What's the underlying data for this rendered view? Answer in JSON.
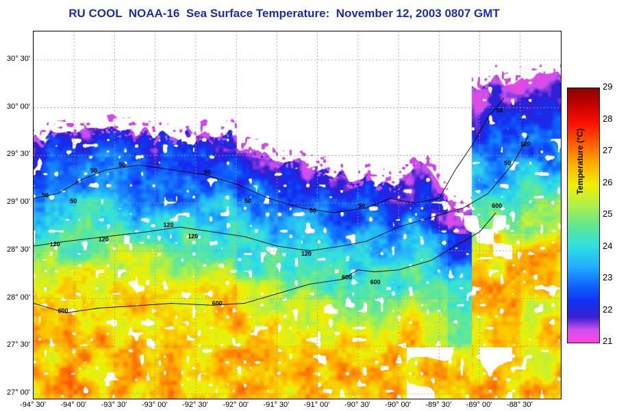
{
  "title": "RU COOL  NOAA-16  Sea Surface Temperature:  November 12, 2003 0807 GMT",
  "colors": {
    "title": "#1a2db0",
    "land": "#ffffff",
    "grid": "#999999",
    "contour": "#000000"
  },
  "map": {
    "lon_range": [
      -94.5,
      -88.0
    ],
    "lat_range": [
      26.95,
      30.8
    ],
    "lat_labels": [
      {
        "value": 30.5,
        "text": "30° 30'"
      },
      {
        "value": 30.0,
        "text": "30° 00'"
      },
      {
        "value": 29.5,
        "text": "29° 30'"
      },
      {
        "value": 29.0,
        "text": "29° 00'"
      },
      {
        "value": 28.5,
        "text": "28° 30'"
      },
      {
        "value": 28.0,
        "text": "28° 00'"
      },
      {
        "value": 27.5,
        "text": "27° 30'"
      },
      {
        "value": 27.0,
        "text": "27° 00'"
      }
    ],
    "lon_labels": [
      {
        "value": -94.5,
        "text": "-94° 30'"
      },
      {
        "value": -94.0,
        "text": "-94° 00'"
      },
      {
        "value": -93.5,
        "text": "-93° 30'"
      },
      {
        "value": -93.0,
        "text": "-93° 00'"
      },
      {
        "value": -92.5,
        "text": "-92° 30'"
      },
      {
        "value": -92.0,
        "text": "-92° 00'"
      },
      {
        "value": -91.5,
        "text": "-91° 30'"
      },
      {
        "value": -91.0,
        "text": "-91° 00'"
      },
      {
        "value": -90.5,
        "text": "-90° 30'"
      },
      {
        "value": -90.0,
        "text": "-90° 00'"
      },
      {
        "value": -89.5,
        "text": "-89° 30'"
      },
      {
        "value": -89.0,
        "text": "-89° 00'"
      },
      {
        "value": -88.5,
        "text": "-88° 30'"
      }
    ],
    "contours": [
      {
        "depth": "50",
        "points": [
          [
            -94.5,
            29.05
          ],
          [
            -94.2,
            29.1
          ],
          [
            -93.9,
            29.25
          ],
          [
            -93.6,
            29.35
          ],
          [
            -93.2,
            29.4
          ],
          [
            -92.8,
            29.35
          ],
          [
            -92.4,
            29.3
          ],
          [
            -92.0,
            29.2
          ],
          [
            -91.6,
            29.05
          ],
          [
            -91.2,
            28.95
          ],
          [
            -90.8,
            28.9
          ],
          [
            -90.4,
            28.95
          ],
          [
            -90.1,
            29.05
          ],
          [
            -89.8,
            29.0
          ],
          [
            -89.5,
            29.05
          ],
          [
            -89.3,
            29.35
          ],
          [
            -89.1,
            29.6
          ],
          [
            -88.9,
            29.9
          ],
          [
            -88.7,
            30.1
          ]
        ]
      },
      {
        "depth": "120",
        "points": [
          [
            -94.5,
            28.55
          ],
          [
            -94.1,
            28.6
          ],
          [
            -93.6,
            28.65
          ],
          [
            -93.1,
            28.7
          ],
          [
            -92.7,
            28.75
          ],
          [
            -92.3,
            28.7
          ],
          [
            -91.9,
            28.65
          ],
          [
            -91.5,
            28.55
          ],
          [
            -91.1,
            28.5
          ],
          [
            -90.7,
            28.55
          ],
          [
            -90.4,
            28.6
          ],
          [
            -90.0,
            28.75
          ],
          [
            -89.6,
            28.85
          ],
          [
            -89.2,
            28.95
          ],
          [
            -88.9,
            29.1
          ],
          [
            -88.6,
            29.4
          ],
          [
            -88.4,
            29.7
          ]
        ]
      },
      {
        "depth": "600",
        "points": [
          [
            -94.5,
            27.95
          ],
          [
            -94.1,
            27.85
          ],
          [
            -93.7,
            27.9
          ],
          [
            -93.3,
            27.92
          ],
          [
            -92.8,
            27.95
          ],
          [
            -92.3,
            27.93
          ],
          [
            -91.9,
            27.95
          ],
          [
            -91.5,
            28.05
          ],
          [
            -91.1,
            28.15
          ],
          [
            -90.7,
            28.2
          ],
          [
            -90.5,
            28.3
          ],
          [
            -90.3,
            28.28
          ],
          [
            -90.0,
            28.3
          ],
          [
            -89.6,
            28.4
          ],
          [
            -89.3,
            28.55
          ],
          [
            -89.0,
            28.7
          ],
          [
            -88.8,
            28.9
          ]
        ]
      }
    ],
    "contour_labels": [
      {
        "text": "50",
        "lon": -93.8,
        "lat": 29.32
      },
      {
        "text": "50",
        "lon": -93.45,
        "lat": 29.38
      },
      {
        "text": "50",
        "lon": -92.4,
        "lat": 29.3
      },
      {
        "text": "50",
        "lon": -94.4,
        "lat": 29.06
      },
      {
        "text": "50",
        "lon": -94.05,
        "lat": 29.0
      },
      {
        "text": "50",
        "lon": -91.9,
        "lat": 29.0
      },
      {
        "text": "50",
        "lon": -91.1,
        "lat": 28.9
      },
      {
        "text": "50",
        "lon": -90.5,
        "lat": 28.95
      },
      {
        "text": "50",
        "lon": -88.8,
        "lat": 29.95
      },
      {
        "text": "50",
        "lon": -88.7,
        "lat": 29.4
      },
      {
        "text": "120",
        "lon": -94.3,
        "lat": 28.55
      },
      {
        "text": "120",
        "lon": -93.7,
        "lat": 28.6
      },
      {
        "text": "120",
        "lon": -92.9,
        "lat": 28.75
      },
      {
        "text": "120",
        "lon": -92.6,
        "lat": 28.63
      },
      {
        "text": "120",
        "lon": -91.2,
        "lat": 28.45
      },
      {
        "text": "120",
        "lon": -88.5,
        "lat": 29.6
      },
      {
        "text": "600",
        "lon": -94.2,
        "lat": 27.85
      },
      {
        "text": "600",
        "lon": -92.3,
        "lat": 27.93
      },
      {
        "text": "600",
        "lon": -90.7,
        "lat": 28.2
      },
      {
        "text": "600",
        "lon": -90.35,
        "lat": 28.15
      },
      {
        "text": "600",
        "lon": -88.85,
        "lat": 28.95
      }
    ]
  },
  "colorbar": {
    "label": "Temperature (°C)",
    "min": 21,
    "max": 29,
    "ticks": [
      "29",
      "28",
      "27",
      "26",
      "25",
      "24",
      "23",
      "22",
      "21"
    ]
  }
}
